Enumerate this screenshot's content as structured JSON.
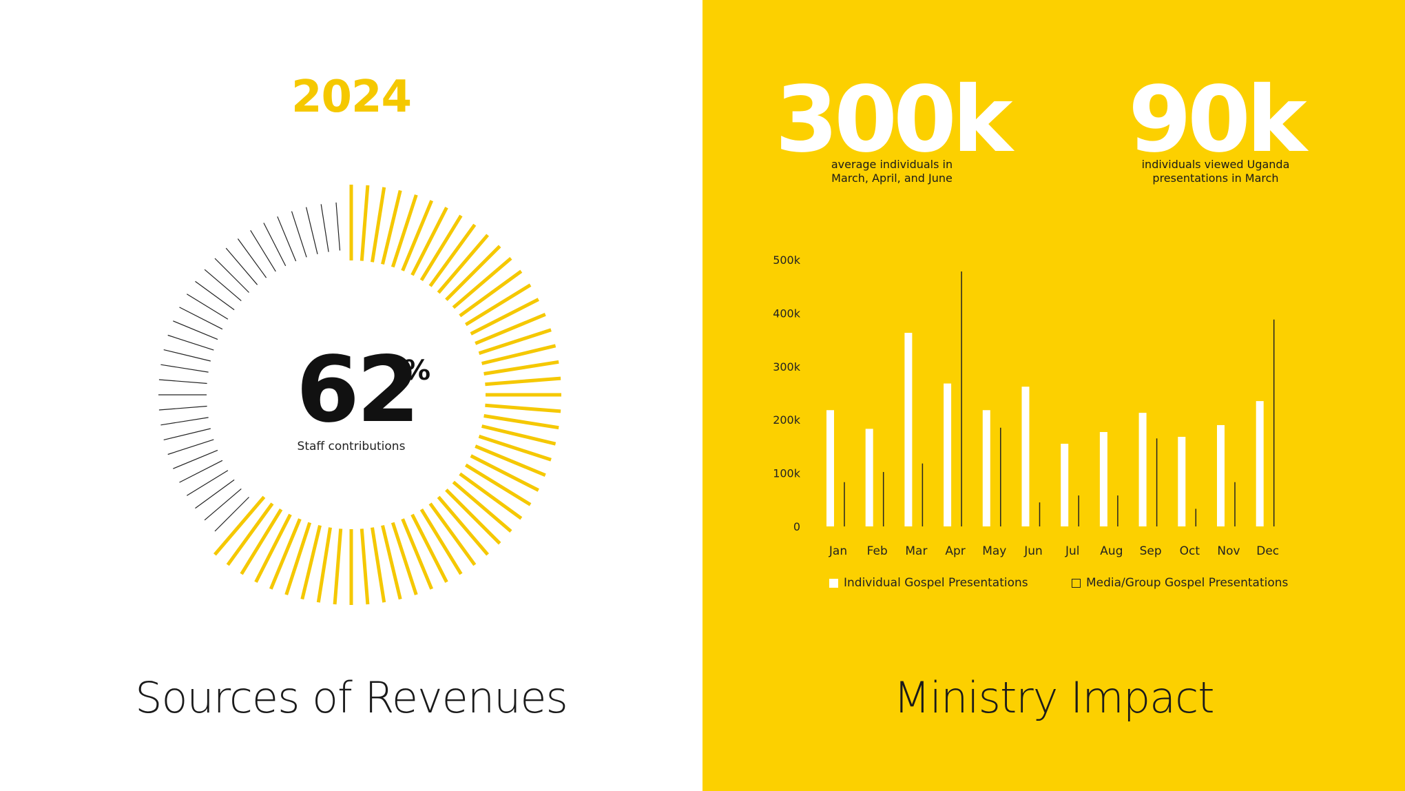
{
  "left": {
    "year": "2024",
    "percent_value": "62",
    "percent_sign": "%",
    "percent_label": "Staff contributions",
    "title": "Sources of Revenues",
    "radial_fraction": 0.62,
    "colors": {
      "highlight": "#F5C800",
      "rest": "#222222"
    }
  },
  "right": {
    "stats": [
      {
        "value": "300k",
        "caption_line1": "average individuals in",
        "caption_line2": "March, April, and June"
      },
      {
        "value": "90k",
        "caption_line1": "individuals viewed Uganda",
        "caption_line2": "presentations in March"
      }
    ],
    "title": "Ministry Impact"
  },
  "chart_data": {
    "type": "bar",
    "categories": [
      "Jan",
      "Feb",
      "Mar",
      "Apr",
      "May",
      "Jun",
      "Jul",
      "Aug",
      "Sep",
      "Oct",
      "Nov",
      "Dec"
    ],
    "series": [
      {
        "name": "Individual Gospel Presentations",
        "values": [
          218000,
          183000,
          363000,
          268000,
          218000,
          262000,
          155000,
          177000,
          213000,
          168000,
          190000,
          235000
        ],
        "color": "#ffffff"
      },
      {
        "name": "Media/Group Gospel Presentations",
        "values": [
          83000,
          102000,
          118000,
          478000,
          185000,
          45000,
          58000,
          58000,
          165000,
          33000,
          83000,
          388000
        ],
        "color": "#222222"
      }
    ],
    "ylim": [
      0,
      500000
    ],
    "yticks": [
      {
        "value": 0,
        "label": "0"
      },
      {
        "value": 100000,
        "label": "100k"
      },
      {
        "value": 200000,
        "label": "200k"
      },
      {
        "value": 300000,
        "label": "300k"
      },
      {
        "value": 400000,
        "label": "400k"
      },
      {
        "value": 500000,
        "label": "500k"
      }
    ],
    "grid": false,
    "legend": "bottom"
  }
}
